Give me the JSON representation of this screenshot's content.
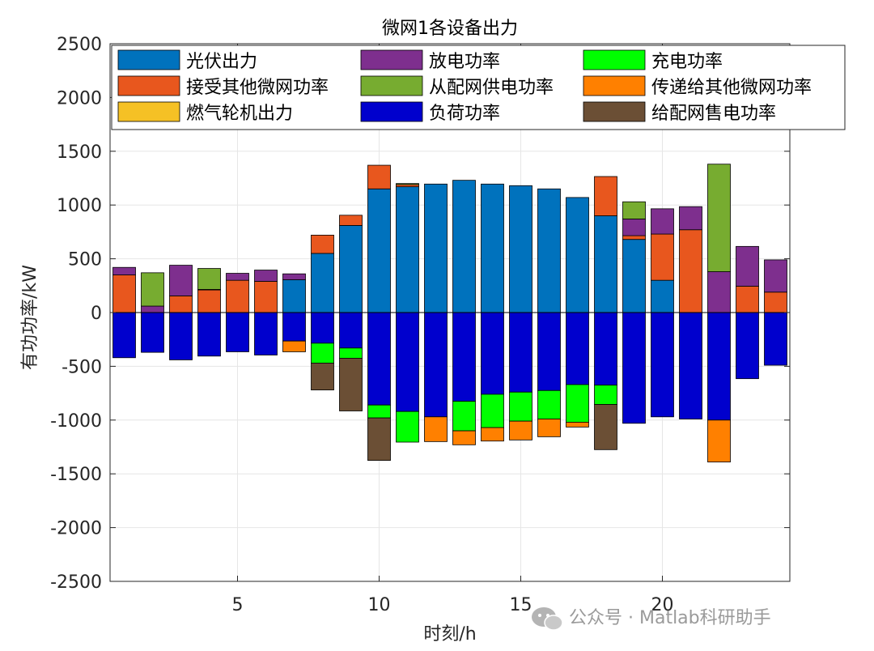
{
  "chart_data": {
    "type": "bar",
    "stacked": true,
    "title": "微网1各设备出力",
    "xlabel": "时刻/h",
    "ylabel": "有功功率/kW",
    "xlim": [
      0.5,
      24.5
    ],
    "ylim": [
      -2500,
      2500
    ],
    "x_ticks": [
      5,
      10,
      15,
      20
    ],
    "y_ticks": [
      -2500,
      -2000,
      -1500,
      -1000,
      -500,
      0,
      500,
      1000,
      1500,
      2000,
      2500
    ],
    "grid": true,
    "legend_position": "top",
    "categories": [
      1,
      2,
      3,
      4,
      5,
      6,
      7,
      8,
      9,
      10,
      11,
      12,
      13,
      14,
      15,
      16,
      17,
      18,
      19,
      20,
      21,
      22,
      23,
      24
    ],
    "positive_series": [
      {
        "name": "光伏出力",
        "color": "#0072BD",
        "values": [
          0,
          0,
          0,
          0,
          0,
          0,
          305,
          550,
          810,
          1150,
          1170,
          1195,
          1230,
          1195,
          1180,
          1150,
          1070,
          900,
          680,
          300,
          0,
          0,
          0,
          0
        ]
      },
      {
        "name": "接受其他微网功率",
        "color": "#E8571E",
        "values": [
          350,
          0,
          155,
          210,
          300,
          290,
          0,
          170,
          95,
          220,
          20,
          0,
          0,
          0,
          0,
          0,
          0,
          365,
          35,
          430,
          770,
          0,
          245,
          190
        ]
      },
      {
        "name": "燃气轮机出力",
        "color": "#F5C125",
        "values": [
          0,
          0,
          0,
          0,
          0,
          0,
          0,
          0,
          0,
          0,
          0,
          0,
          0,
          0,
          0,
          0,
          0,
          0,
          0,
          0,
          0,
          0,
          0,
          0
        ]
      },
      {
        "name": "放电功率",
        "color": "#7E2F8E",
        "values": [
          70,
          60,
          285,
          5,
          65,
          105,
          55,
          0,
          0,
          0,
          0,
          0,
          0,
          0,
          0,
          0,
          0,
          0,
          155,
          235,
          215,
          380,
          370,
          300
        ]
      },
      {
        "name": "从配网供电功率",
        "color": "#77AC30",
        "values": [
          0,
          310,
          0,
          195,
          0,
          0,
          0,
          0,
          0,
          0,
          10,
          0,
          0,
          0,
          0,
          0,
          0,
          0,
          160,
          0,
          0,
          1000,
          0,
          0
        ]
      }
    ],
    "negative_series": [
      {
        "name": "负荷功率",
        "color": "#0000CD",
        "values": [
          -420,
          -370,
          -440,
          -405,
          -365,
          -395,
          -265,
          -285,
          -330,
          -860,
          -920,
          -970,
          -825,
          -760,
          -740,
          -725,
          -670,
          -675,
          -1030,
          -970,
          -990,
          -1000,
          -615,
          -490
        ]
      },
      {
        "name": "充电功率",
        "color": "#00FF00",
        "values": [
          0,
          0,
          0,
          0,
          0,
          0,
          0,
          -185,
          -95,
          -120,
          -285,
          0,
          -275,
          -310,
          -270,
          -265,
          -350,
          -180,
          0,
          0,
          0,
          0,
          0,
          0
        ]
      },
      {
        "name": "传递给其他微网功率",
        "color": "#FF8000",
        "values": [
          0,
          0,
          0,
          0,
          0,
          0,
          -100,
          0,
          0,
          0,
          0,
          -230,
          -130,
          -125,
          -175,
          -165,
          -45,
          0,
          0,
          0,
          0,
          -390,
          0,
          0
        ]
      },
      {
        "name": "给配网售电功率",
        "color": "#6B4F35",
        "values": [
          0,
          0,
          0,
          0,
          0,
          0,
          0,
          -250,
          -490,
          -395,
          0,
          0,
          0,
          0,
          0,
          0,
          0,
          -420,
          0,
          0,
          0,
          0,
          0,
          0
        ]
      }
    ],
    "legend_order": [
      "光伏出力",
      "放电功率",
      "充电功率",
      "接受其他微网功率",
      "从配网供电功率",
      "传递给其他微网功率",
      "燃气轮机出力",
      "负荷功率",
      "给配网售电功率"
    ]
  },
  "watermark": {
    "text": "公众号 · Matlab科研助手",
    "icon": "wechat-icon"
  }
}
